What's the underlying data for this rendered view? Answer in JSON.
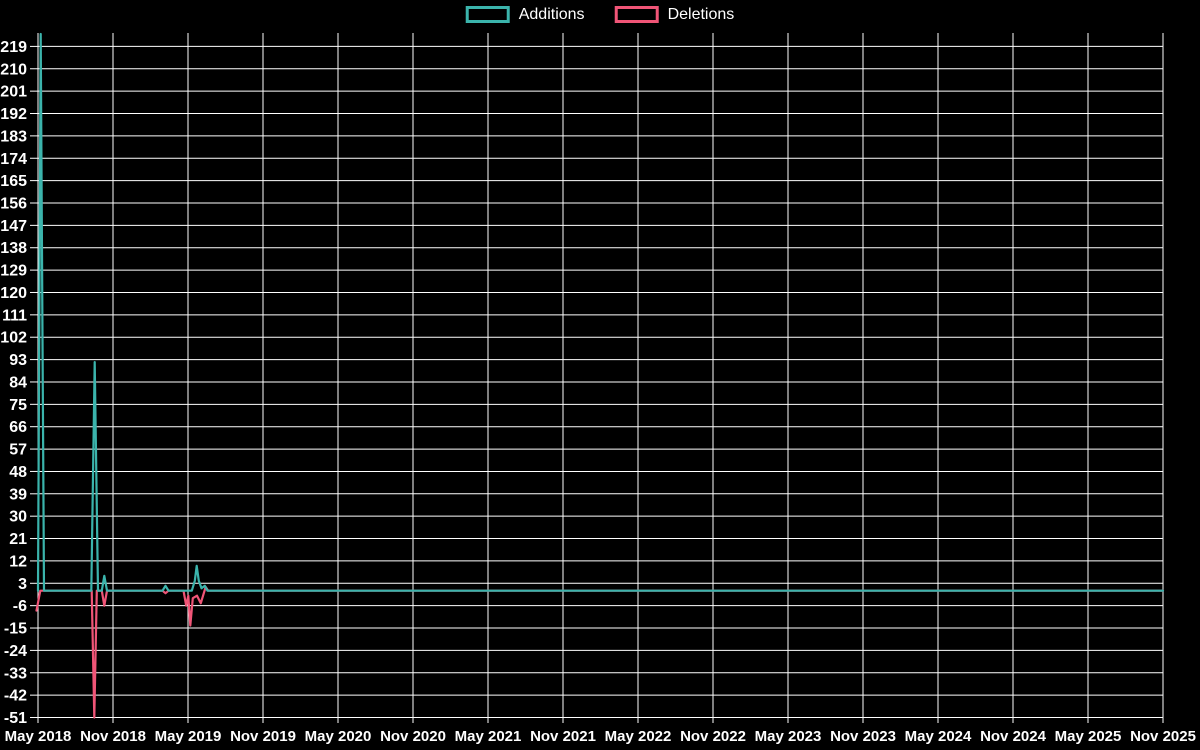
{
  "legend": {
    "items": [
      {
        "label": "Additions",
        "color": "#3bb4ac"
      },
      {
        "label": "Deletions",
        "color": "#f05577"
      }
    ]
  },
  "colors": {
    "background": "#000000",
    "grid": "#ffffff",
    "text": "#ffffff",
    "additions": "#3bb4ac",
    "deletions": "#f05577"
  },
  "chart_data": {
    "type": "line",
    "title": "",
    "xlabel": "",
    "ylabel": "",
    "grid": true,
    "legend_position": "top-center",
    "x_axis": {
      "tick_labels": [
        "May 2018",
        "Nov 2018",
        "May 2019",
        "Nov 2019",
        "May 2020",
        "Nov 2020",
        "May 2021",
        "Nov 2021",
        "May 2022",
        "Nov 2022",
        "May 2023",
        "Nov 2023",
        "May 2024",
        "Nov 2024",
        "May 2025",
        "Nov 2025"
      ],
      "min_year": 2018.35,
      "max_year": 2025.85,
      "tick_interval_years": 0.5
    },
    "y_axis": {
      "ticks": [
        219,
        210,
        201,
        192,
        183,
        174,
        165,
        156,
        147,
        138,
        129,
        120,
        111,
        102,
        93,
        84,
        75,
        66,
        57,
        48,
        39,
        30,
        21,
        12,
        3,
        -6,
        -15,
        -24,
        -33,
        -42,
        -51
      ],
      "min": -51,
      "max": 224,
      "step": 9
    },
    "series": [
      {
        "name": "Additions",
        "color": "#3bb4ac",
        "points": [
          [
            2018.35,
            0
          ],
          [
            2018.368,
            224
          ],
          [
            2018.39,
            0
          ],
          [
            2018.705,
            0
          ],
          [
            2018.728,
            92
          ],
          [
            2018.75,
            0
          ],
          [
            2018.775,
            0
          ],
          [
            2018.792,
            6
          ],
          [
            2018.81,
            0
          ],
          [
            2019.18,
            0
          ],
          [
            2019.2,
            2
          ],
          [
            2019.22,
            0
          ],
          [
            2019.375,
            0
          ],
          [
            2019.395,
            4
          ],
          [
            2019.408,
            10
          ],
          [
            2019.422,
            4
          ],
          [
            2019.44,
            1
          ],
          [
            2019.462,
            2
          ],
          [
            2019.48,
            0
          ],
          [
            2025.85,
            0
          ]
        ]
      },
      {
        "name": "Deletions",
        "color": "#f05577",
        "points": [
          [
            2018.34,
            -8
          ],
          [
            2018.365,
            0
          ],
          [
            2018.708,
            0
          ],
          [
            2018.725,
            -51
          ],
          [
            2018.742,
            0
          ],
          [
            2018.775,
            0
          ],
          [
            2018.792,
            -6
          ],
          [
            2018.81,
            0
          ],
          [
            2019.18,
            0
          ],
          [
            2019.2,
            -1
          ],
          [
            2019.22,
            0
          ],
          [
            2019.32,
            0
          ],
          [
            2019.338,
            -6
          ],
          [
            2019.352,
            -2
          ],
          [
            2019.365,
            -14
          ],
          [
            2019.382,
            -3
          ],
          [
            2019.41,
            -2
          ],
          [
            2019.435,
            -5
          ],
          [
            2019.455,
            -1
          ],
          [
            2019.468,
            1.5
          ],
          [
            2019.485,
            0
          ],
          [
            2025.85,
            0
          ]
        ]
      }
    ]
  }
}
